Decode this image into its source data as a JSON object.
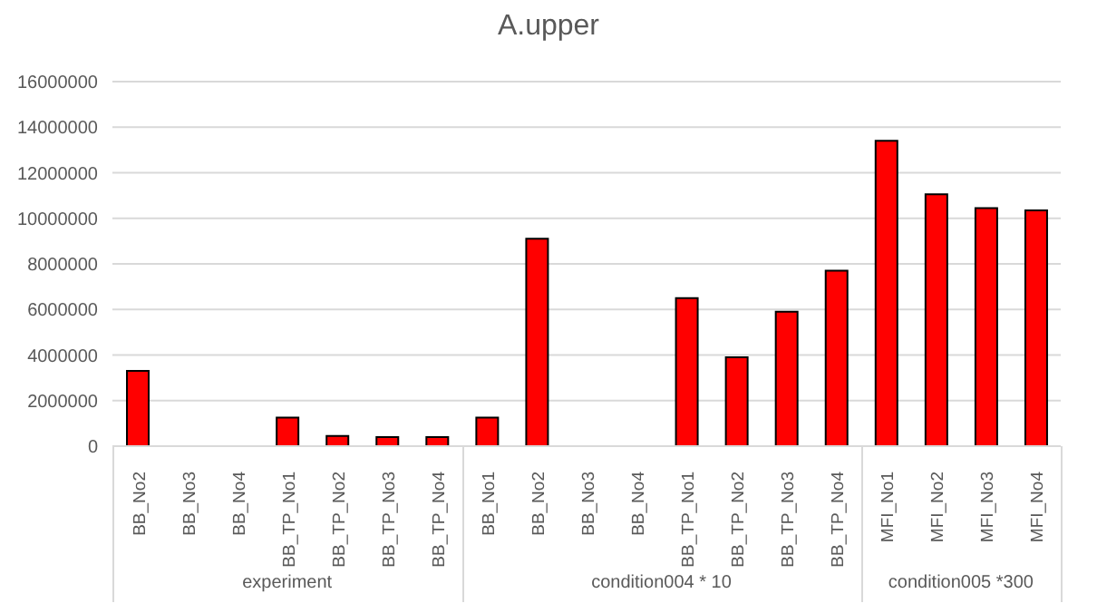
{
  "chart_data": {
    "type": "bar",
    "title": "A.upper",
    "categories": [
      "BB_No2",
      "BB_No3",
      "BB_No4",
      "BB_TP_No1",
      "BB_TP_No2",
      "BB_TP_No3",
      "BB_TP_No4",
      "BB_No1",
      "BB_No2",
      "BB_No3",
      "BB_No4",
      "BB_TP_No1",
      "BB_TP_No2",
      "BB_TP_No3",
      "BB_TP_No4",
      "MFI_No1",
      "MFI_No2",
      "MFI_No3",
      "MFI_No4"
    ],
    "values": [
      3300000,
      0,
      0,
      1250000,
      450000,
      400000,
      400000,
      1250000,
      9100000,
      0,
      0,
      6500000,
      3900000,
      5900000,
      7700000,
      13400000,
      11050000,
      10450000,
      10350000
    ],
    "color": "#ff0000",
    "ylim": [
      0,
      16000000
    ],
    "yticks": [
      0,
      2000000,
      4000000,
      6000000,
      8000000,
      10000000,
      12000000,
      14000000,
      16000000
    ],
    "grid": "y",
    "legend": false,
    "annotations": [
      "experiment",
      "condition004 * 10",
      "condition005 *300"
    ]
  }
}
